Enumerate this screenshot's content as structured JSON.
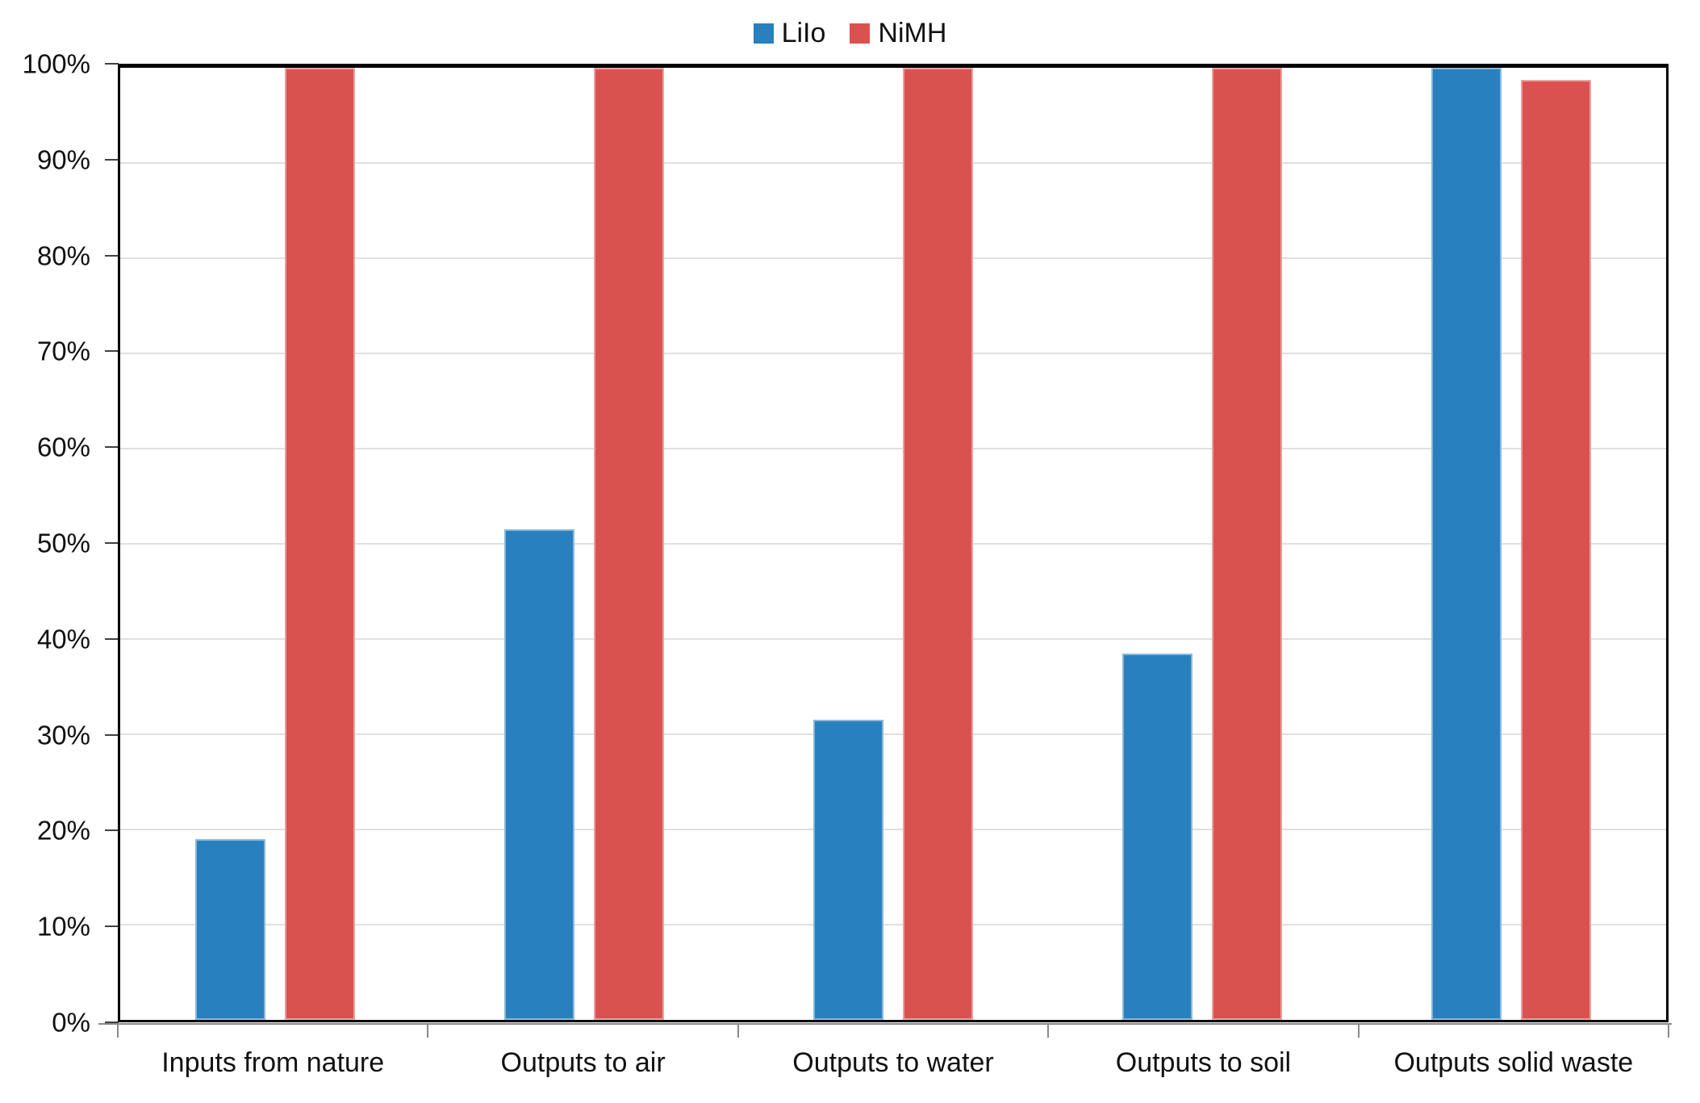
{
  "chart_data": {
    "type": "bar",
    "title": "",
    "xlabel": "",
    "ylabel": "",
    "categories": [
      "Inputs from nature",
      "Outputs to air",
      "Outputs to water",
      "Outputs to soil",
      "Outputs solid waste"
    ],
    "series": [
      {
        "name": "LiIo",
        "color": "#2880BE",
        "values": [
          19,
          51.5,
          31.5,
          38.5,
          100
        ]
      },
      {
        "name": "NiMH",
        "color": "#DA5250",
        "values": [
          100,
          100,
          100,
          100,
          98.7
        ]
      }
    ],
    "ylim": [
      0,
      100
    ],
    "y_tick_step": 10,
    "y_tick_format": "percent",
    "grid": true,
    "legend_position": "top-center"
  },
  "y_axis": {
    "tick_labels": [
      "0%",
      "10%",
      "20%",
      "30%",
      "40%",
      "50%",
      "60%",
      "70%",
      "80%",
      "90%",
      "100%"
    ]
  },
  "colors": {
    "gridline": "#e0e0e0",
    "plot_border": "#000000",
    "category_axis": "#8a8a8a",
    "text": "#111111",
    "background": "#ffffff"
  }
}
